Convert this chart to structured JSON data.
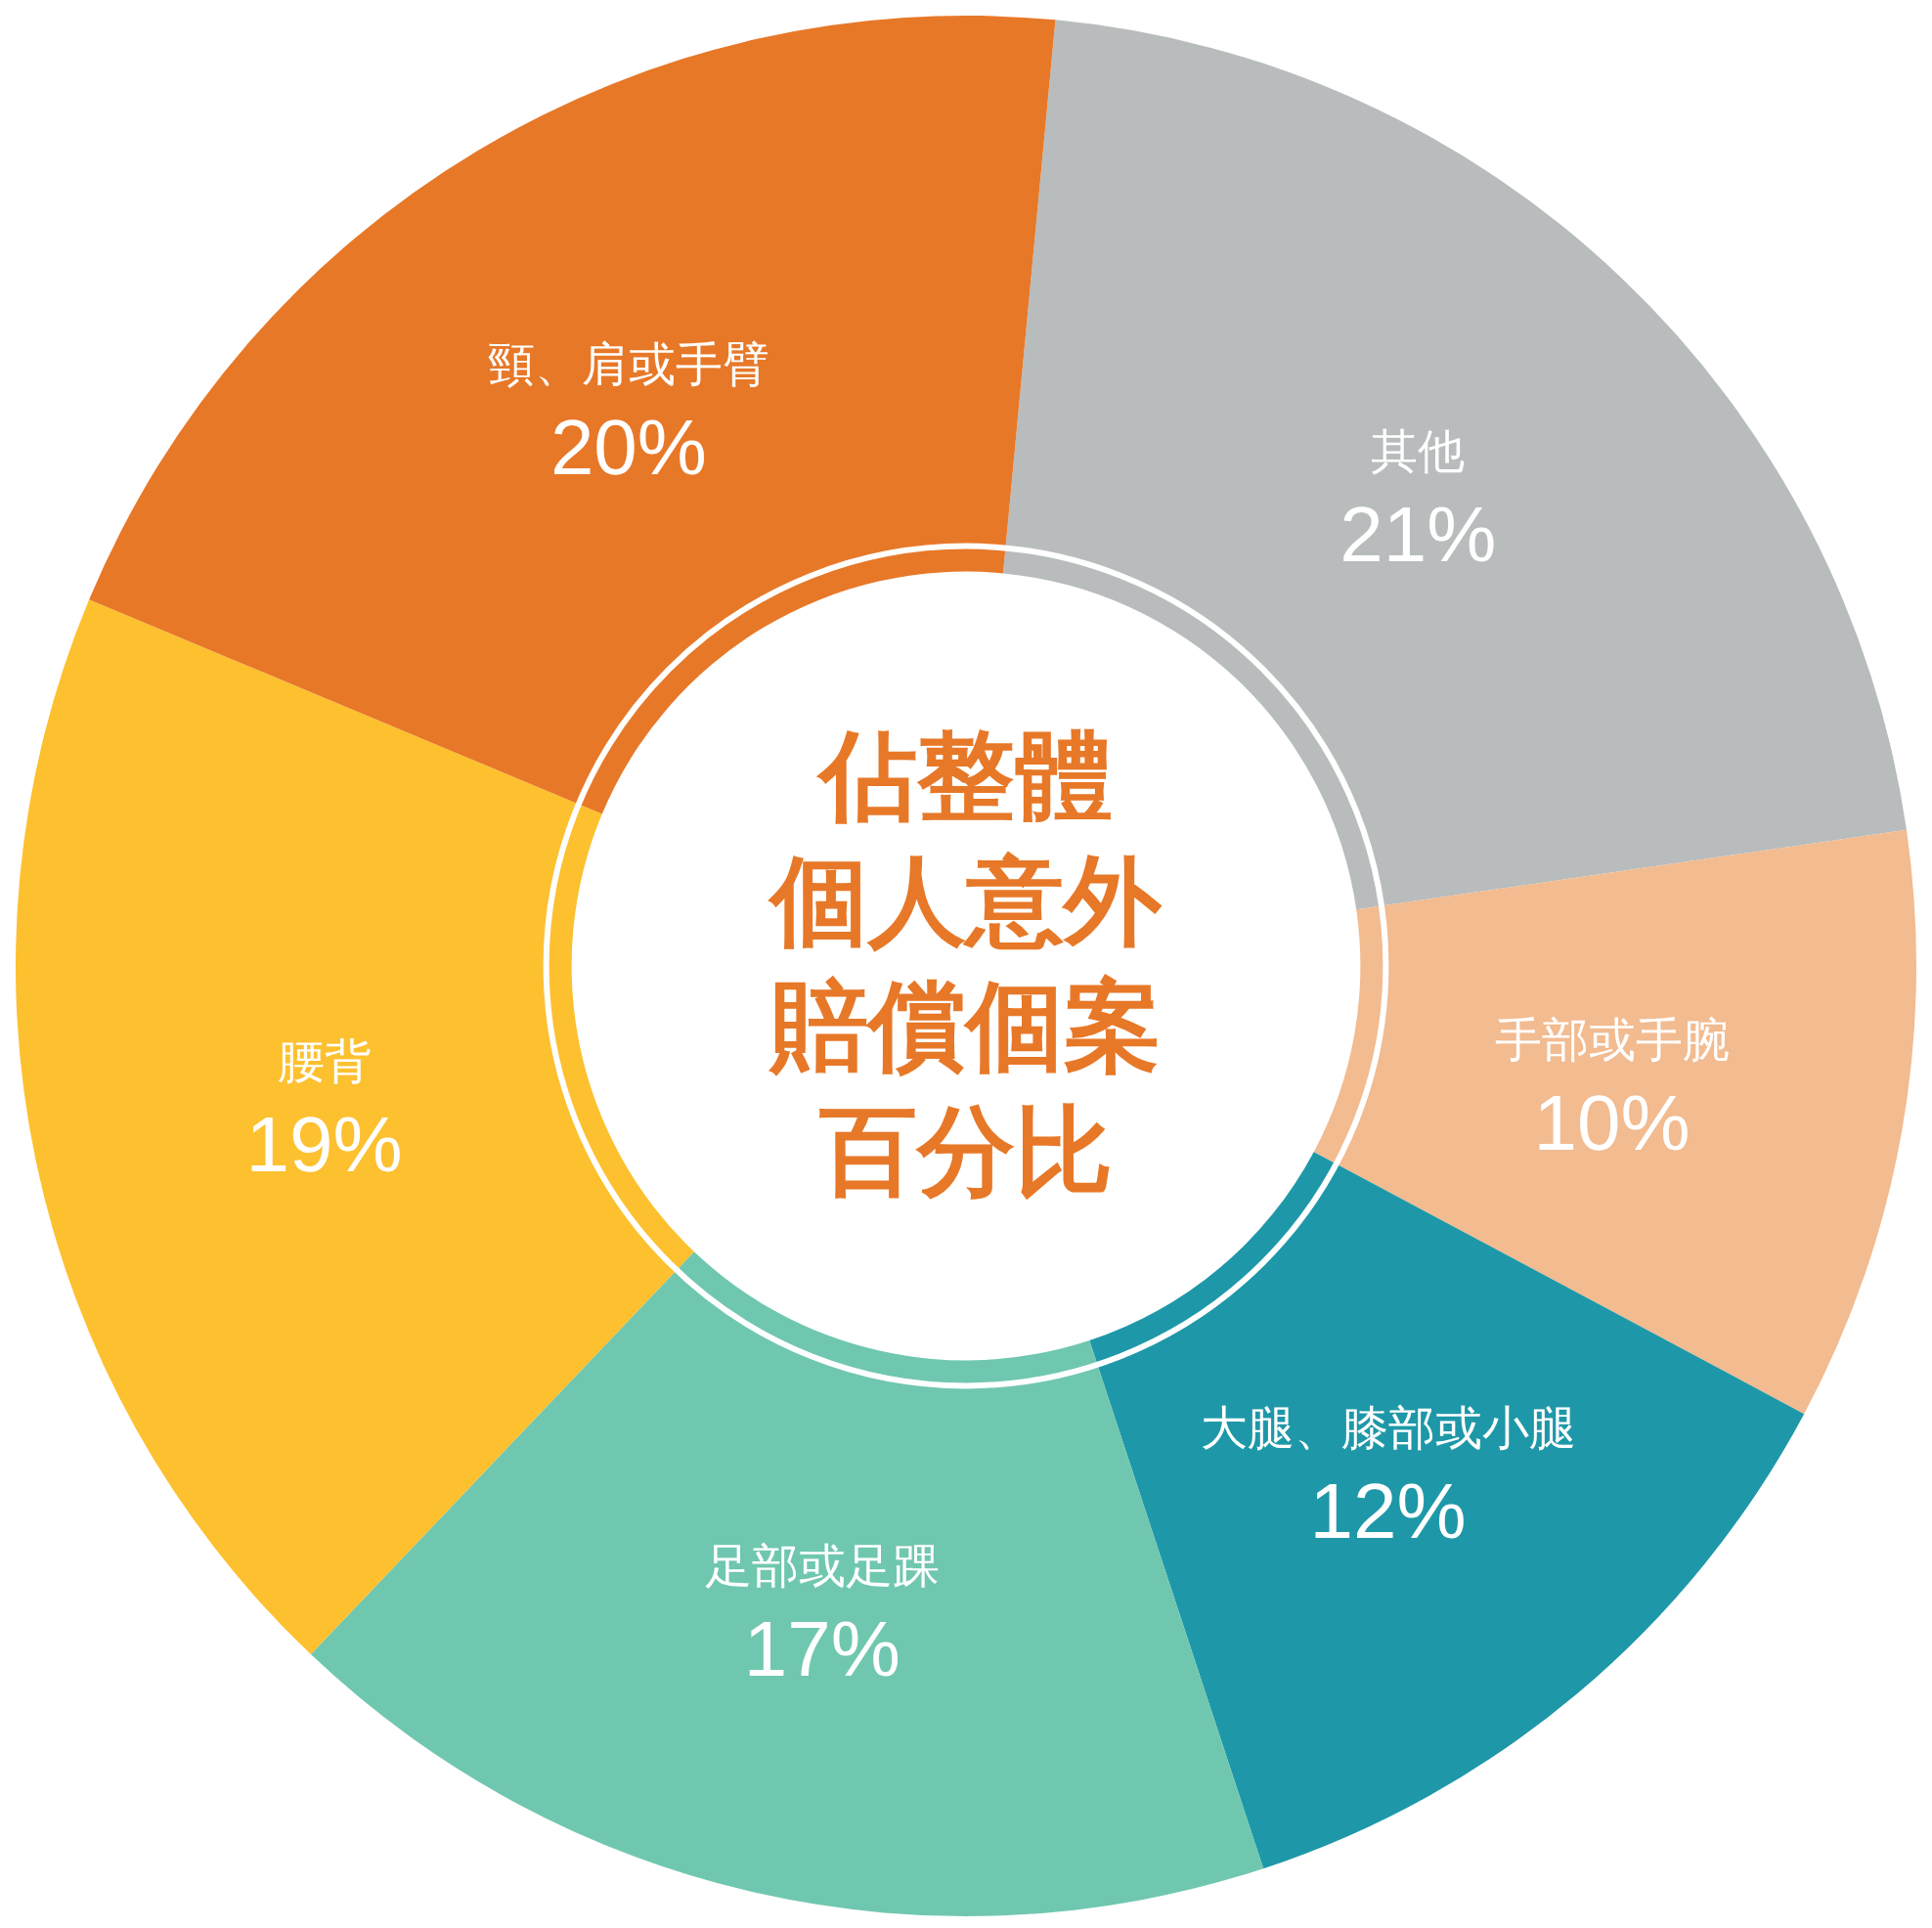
{
  "chart_data": {
    "type": "donut",
    "title": "佔整體個人意外賠償個案百分比",
    "categories": [
      "其他",
      "手部或手腕",
      "大腿、膝部或小腿",
      "足部或足踝",
      "腰背",
      "頸、肩或手臂"
    ],
    "values": [
      21,
      10,
      12,
      17,
      19,
      20
    ],
    "colors": [
      "#b8bcbd",
      "#f2bb90",
      "#1e98a8",
      "#70c7b0",
      "#fdc02f",
      "#e77828"
    ],
    "value_labels": [
      "21%",
      "10%",
      "12%",
      "17%",
      "19%",
      "20%"
    ]
  }
}
